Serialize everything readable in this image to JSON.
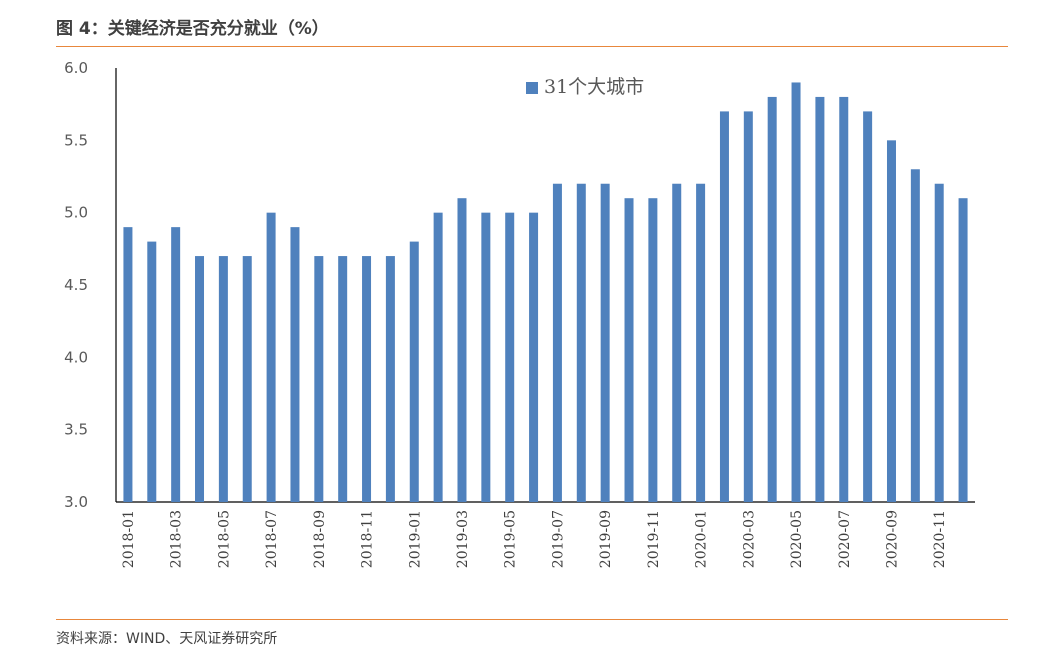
{
  "title": "图 4：关键经济是否充分就业（%）",
  "source": "资料来源：WIND、天风证券研究所",
  "colors": {
    "bar": "#4F81BD",
    "accent": "#E8873C",
    "axis": "#000000",
    "text": "#595959"
  },
  "chart_data": {
    "type": "bar",
    "title": "",
    "xlabel": "",
    "ylabel": "",
    "ylim": [
      3.0,
      6.0
    ],
    "yticks": [
      "3.0",
      "3.5",
      "4.0",
      "4.5",
      "5.0",
      "5.5",
      "6.0"
    ],
    "grid": false,
    "legend": "top-center",
    "categories": [
      "2018-01",
      "2018-02",
      "2018-03",
      "2018-04",
      "2018-05",
      "2018-06",
      "2018-07",
      "2018-08",
      "2018-09",
      "2018-10",
      "2018-11",
      "2018-12",
      "2019-01",
      "2019-02",
      "2019-03",
      "2019-04",
      "2019-05",
      "2019-06",
      "2019-07",
      "2019-08",
      "2019-09",
      "2019-10",
      "2019-11",
      "2019-12",
      "2020-01",
      "2020-02",
      "2020-03",
      "2020-04",
      "2020-05",
      "2020-06",
      "2020-07",
      "2020-08",
      "2020-09",
      "2020-10",
      "2020-11",
      "2020-12"
    ],
    "tick_labels": [
      "2018-01",
      "2018-03",
      "2018-05",
      "2018-07",
      "2018-09",
      "2018-11",
      "2019-01",
      "2019-03",
      "2019-05",
      "2019-07",
      "2019-09",
      "2019-11",
      "2020-01",
      "2020-03",
      "2020-05",
      "2020-07",
      "2020-09",
      "2020-11"
    ],
    "series": [
      {
        "name": "31个大城市",
        "values": [
          4.9,
          4.8,
          4.9,
          4.7,
          4.7,
          4.7,
          5.0,
          4.9,
          4.7,
          4.7,
          4.7,
          4.7,
          4.8,
          5.0,
          5.1,
          5.0,
          5.0,
          5.0,
          5.2,
          5.2,
          5.2,
          5.1,
          5.1,
          5.2,
          5.2,
          5.7,
          5.7,
          5.8,
          5.9,
          5.8,
          5.8,
          5.7,
          5.5,
          5.3,
          5.2,
          5.1
        ]
      }
    ]
  }
}
